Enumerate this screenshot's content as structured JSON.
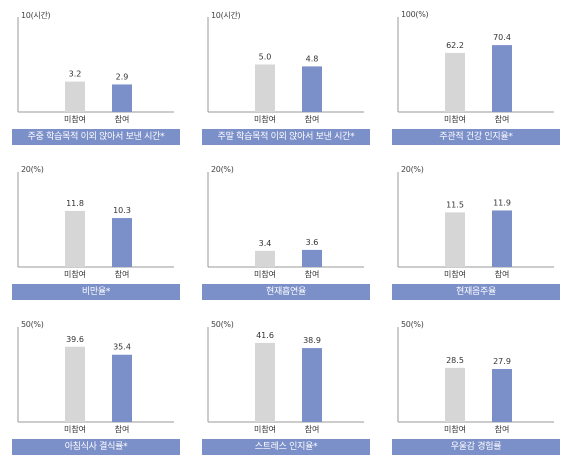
{
  "colors": {
    "nonparticipant": "#d6d6d6",
    "participant": "#7b8fc9",
    "title_bar": "#7b8fc9",
    "axis": "#999999"
  },
  "chart_data": [
    {
      "type": "bar",
      "title": "주중 학습목적 이외 앉아서 보낸 시간*",
      "ymax_label": "10(시간)",
      "ylim": [
        0,
        10
      ],
      "categories": [
        "미참여",
        "참여"
      ],
      "values": [
        3.2,
        2.9
      ],
      "value_labels": [
        "3.2",
        "2.9"
      ]
    },
    {
      "type": "bar",
      "title": "주말 학습목적 이외 앉아서 보낸 시간*",
      "ymax_label": "10(시간)",
      "ylim": [
        0,
        10
      ],
      "categories": [
        "미참여",
        "참여"
      ],
      "values": [
        5.0,
        4.8
      ],
      "value_labels": [
        "5.0",
        "4.8"
      ]
    },
    {
      "type": "bar",
      "title": "주관적 건강 인지율*",
      "ymax_label": "100(%)",
      "ylim": [
        0,
        100
      ],
      "categories": [
        "미참여",
        "참여"
      ],
      "values": [
        62.2,
        70.4
      ],
      "value_labels": [
        "62.2",
        "70.4"
      ]
    },
    {
      "type": "bar",
      "title": "비만율*",
      "ymax_label": "20(%)",
      "ylim": [
        0,
        20
      ],
      "categories": [
        "미참여",
        "참여"
      ],
      "values": [
        11.8,
        10.3
      ],
      "value_labels": [
        "11.8",
        "10.3"
      ]
    },
    {
      "type": "bar",
      "title": "현재흡연율",
      "ymax_label": "20(%)",
      "ylim": [
        0,
        20
      ],
      "categories": [
        "미참여",
        "참여"
      ],
      "values": [
        3.4,
        3.6
      ],
      "value_labels": [
        "3.4",
        "3.6"
      ]
    },
    {
      "type": "bar",
      "title": "현재음주율",
      "ymax_label": "20(%)",
      "ylim": [
        0,
        20
      ],
      "categories": [
        "미참여",
        "참여"
      ],
      "values": [
        11.5,
        11.9
      ],
      "value_labels": [
        "11.5",
        "11.9"
      ]
    },
    {
      "type": "bar",
      "title": "아침식사 결식률*",
      "ymax_label": "50(%)",
      "ylim": [
        0,
        50
      ],
      "categories": [
        "미참여",
        "참여"
      ],
      "values": [
        39.6,
        35.4
      ],
      "value_labels": [
        "39.6",
        "35.4"
      ]
    },
    {
      "type": "bar",
      "title": "스트레스 인지율*",
      "ymax_label": "50(%)",
      "ylim": [
        0,
        50
      ],
      "categories": [
        "미참여",
        "참여"
      ],
      "values": [
        41.6,
        38.9
      ],
      "value_labels": [
        "41.6",
        "38.9"
      ]
    },
    {
      "type": "bar",
      "title": "우울감 경험률",
      "ymax_label": "50(%)",
      "ylim": [
        0,
        50
      ],
      "categories": [
        "미참여",
        "참여"
      ],
      "values": [
        28.5,
        27.9
      ],
      "value_labels": [
        "28.5",
        "27.9"
      ]
    }
  ]
}
